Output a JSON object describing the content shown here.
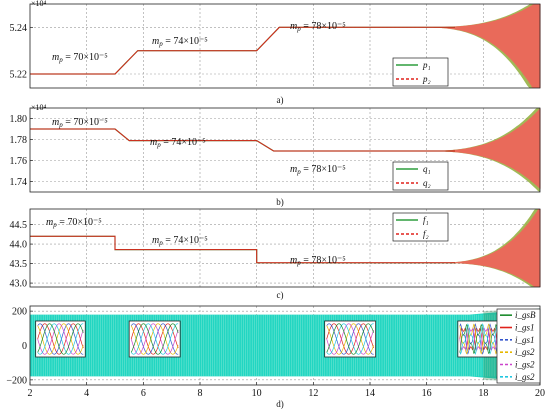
{
  "chart_data": [
    {
      "id": "a",
      "type": "line",
      "caption": "a)",
      "exponent_label": "×10⁴",
      "xlim": [
        2,
        20
      ],
      "ylim": [
        52.14,
        52.5
      ],
      "y_scale_note": "values in units of 10^3",
      "yticks": [
        52.2,
        52.4
      ],
      "ytick_labels": [
        "5.22",
        "5.24"
      ],
      "grid": true,
      "legend": {
        "placement": "bottom-right",
        "entries": [
          {
            "label": "p₁",
            "color": "#2e9e3e",
            "style": "solid"
          },
          {
            "label": "p₂",
            "color": "#e0221b",
            "style": "dashed"
          }
        ]
      },
      "annotations": [
        {
          "text": "m_p = 70×10⁻⁵"
        },
        {
          "text": "m_p = 74×10⁻⁵"
        },
        {
          "text": "m_p = 78×10⁻⁵"
        }
      ],
      "steps": [
        [
          2,
          52.2
        ],
        [
          5,
          52.2
        ],
        [
          5.8,
          52.3
        ],
        [
          10,
          52.3
        ],
        [
          10.8,
          52.4
        ],
        [
          17,
          52.4
        ]
      ],
      "oscillation": {
        "start": 15.5,
        "center": 52.4,
        "end_amp_up": 0.13,
        "end_amp_down": 0.35
      }
    },
    {
      "id": "b",
      "type": "line",
      "caption": "b)",
      "exponent_label": "×10⁴",
      "xlim": [
        2,
        20
      ],
      "ylim": [
        17.3,
        18.1
      ],
      "yticks": [
        17.4,
        17.6,
        17.8,
        18.0
      ],
      "ytick_labels": [
        "1.74",
        "1.76",
        "1.78",
        "1.80"
      ],
      "grid": true,
      "legend": {
        "placement": "bottom-right",
        "entries": [
          {
            "label": "q₁",
            "color": "#2e9e3e",
            "style": "solid"
          },
          {
            "label": "q₂",
            "color": "#e0221b",
            "style": "dashed"
          }
        ]
      },
      "annotations": [
        {
          "text": "m_p = 70×10⁻⁵"
        },
        {
          "text": "m_p = 74×10⁻⁵"
        },
        {
          "text": "m_p = 78×10⁻⁵"
        }
      ],
      "steps": [
        [
          2,
          17.9
        ],
        [
          5,
          17.9
        ],
        [
          5.5,
          17.79
        ],
        [
          10,
          17.79
        ],
        [
          10.6,
          17.69
        ],
        [
          17,
          17.69
        ]
      ],
      "oscillation": {
        "start": 15.5,
        "center": 17.69,
        "end_amp_up": 0.45,
        "end_amp_down": 0.4
      }
    },
    {
      "id": "c",
      "type": "line",
      "caption": "c)",
      "xlim": [
        2,
        20
      ],
      "ylim": [
        42.9,
        44.9
      ],
      "yticks": [
        43.0,
        43.5,
        44.0,
        44.5
      ],
      "ytick_labels": [
        "43.0",
        "43.5",
        "44.0",
        "44.5"
      ],
      "grid": true,
      "legend": {
        "placement": "top-right",
        "entries": [
          {
            "label": "f₁",
            "color": "#2e9e3e",
            "style": "solid"
          },
          {
            "label": "f₂",
            "color": "#e0221b",
            "style": "dashed"
          }
        ]
      },
      "annotations": [
        {
          "text": "m_p = 70×10⁻⁵"
        },
        {
          "text": "m_p = 74×10⁻⁵"
        },
        {
          "text": "m_p = 78×10⁻⁵"
        }
      ],
      "steps": [
        [
          2,
          44.2
        ],
        [
          5,
          44.2
        ],
        [
          5,
          43.86
        ],
        [
          10,
          43.86
        ],
        [
          10,
          43.52
        ],
        [
          17,
          43.52
        ]
      ],
      "oscillation": {
        "start": 16.0,
        "center": 43.52,
        "end_amp_up": 1.6,
        "end_amp_down": 0.8
      }
    },
    {
      "id": "d",
      "type": "line",
      "caption": "d)",
      "xlim": [
        2,
        20
      ],
      "ylim": [
        -230,
        230
      ],
      "yticks": [
        -200,
        0,
        200
      ],
      "ytick_labels": [
        "−200",
        "0",
        "200"
      ],
      "xticks": [
        2,
        4,
        6,
        8,
        10,
        12,
        14,
        16,
        18,
        20
      ],
      "xtick_labels": [
        "2",
        "4",
        "6",
        "8",
        "10",
        "12",
        "14",
        "16",
        "18",
        "20"
      ],
      "grid": true,
      "band": {
        "amplitude": 180,
        "color": "#21d6c2",
        "grows_after": 17.5,
        "end_amplitude": 215
      },
      "insets": [
        {
          "x_from": 2.2,
          "x_to": 3.95,
          "kind": "three-phase"
        },
        {
          "x_from": 5.5,
          "x_to": 7.3,
          "kind": "three-phase"
        },
        {
          "x_from": 12.4,
          "x_to": 14.2,
          "kind": "three-phase"
        },
        {
          "x_from": 17.1,
          "x_to": 18.8,
          "kind": "distorted"
        }
      ],
      "legend": {
        "placement": "right",
        "entries": [
          {
            "label": "i_gsB",
            "color": "#1a8a2a",
            "style": "solid"
          },
          {
            "label": "i_gs1",
            "color": "#e0221b",
            "style": "solid"
          },
          {
            "label": "i_gs1",
            "color": "#3355cc",
            "style": "dashed"
          },
          {
            "label": "i_gs2",
            "color": "#e6b800",
            "style": "dashed"
          },
          {
            "label": "i_gs2",
            "color": "#cc44cc",
            "style": "dashed"
          },
          {
            "label": "i_gs2",
            "color": "#22c6e0",
            "style": "dashed"
          }
        ]
      }
    }
  ]
}
